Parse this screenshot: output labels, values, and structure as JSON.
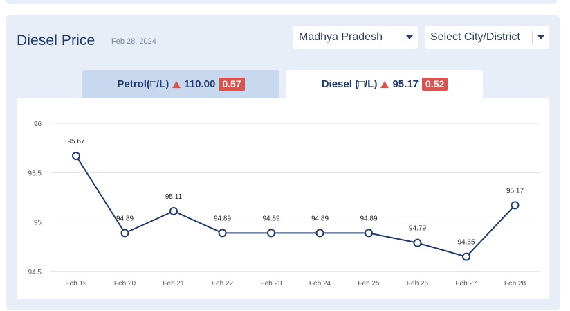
{
  "header": {
    "title": "Diesel Price",
    "date": "Feb 28, 2024"
  },
  "filters": {
    "state": "Madhya Pradesh",
    "city": "Select City/District"
  },
  "tabs": {
    "petrol": {
      "label": "Petrol(□/L)",
      "price": "110.00",
      "change": "0.57"
    },
    "diesel": {
      "label": "Diesel (□/L)",
      "price": "95.17",
      "change": "0.52"
    }
  },
  "colors": {
    "line": "#1f3a6e",
    "up_indicator": "#d9534f"
  },
  "chart_data": {
    "type": "line",
    "categories": [
      "Feb 19",
      "Feb 20",
      "Feb 21",
      "Feb 22",
      "Feb 23",
      "Feb 24",
      "Feb 25",
      "Feb 26",
      "Feb 27",
      "Feb 28"
    ],
    "values": [
      95.67,
      94.89,
      95.11,
      94.89,
      94.89,
      94.89,
      94.89,
      94.79,
      94.65,
      95.17
    ],
    "data_labels": [
      "95.67",
      "94.89",
      "95.11",
      "94.89",
      "94.89",
      "94.89",
      "94.89",
      "94.79",
      "94.65",
      "95.17"
    ],
    "yticks": [
      "96",
      "95.5",
      "95",
      "94.5"
    ],
    "ytick_values": [
      96,
      95.5,
      95,
      94.5
    ],
    "ylim": [
      94.5,
      96
    ],
    "grid": true
  }
}
